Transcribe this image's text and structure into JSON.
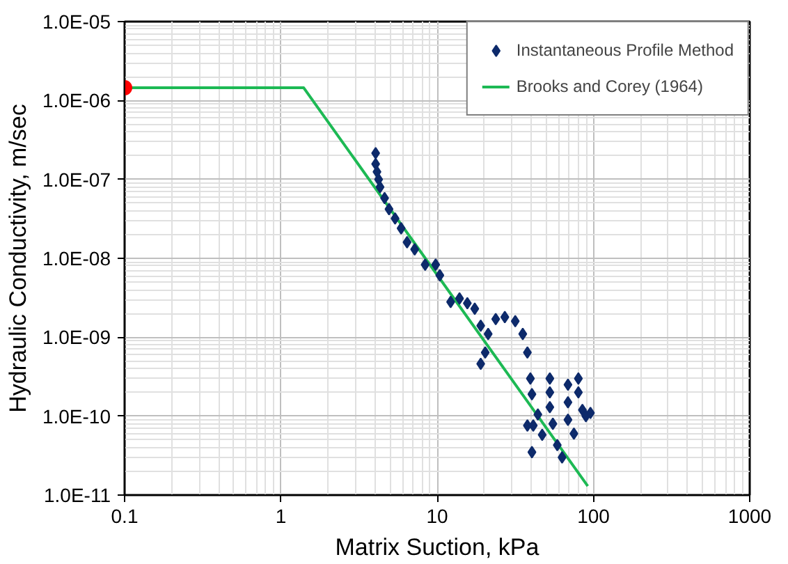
{
  "chart_data": {
    "type": "scatter",
    "xlabel": "Matrix Suction, kPa",
    "ylabel": "Hydraulic Conductivity, m/sec",
    "log": "xy",
    "grid": true,
    "legend": "top right",
    "xlim": [
      0.1,
      1000
    ],
    "xticks": [
      0.1,
      1,
      10,
      100,
      1000
    ],
    "ylim": [
      1e-11,
      1e-05
    ],
    "yticks": [
      {
        "value": 1e-11,
        "label": "1.0E-11"
      },
      {
        "value": 1e-10,
        "label": "1.0E-10"
      },
      {
        "value": 1e-09,
        "label": "1.0E-09"
      },
      {
        "value": 1e-08,
        "label": "1.0E-08"
      },
      {
        "value": 1e-07,
        "label": "1.0E-07"
      },
      {
        "value": 1e-06,
        "label": "1.0E-06"
      },
      {
        "value": 1e-05,
        "label": "1.0E-05"
      }
    ],
    "series": [
      {
        "name": "Instantaneous Profile Method",
        "marker": "diamond",
        "color": "#0d2a6b",
        "x": [
          4.04,
          4.04,
          4.12,
          4.22,
          4.31,
          4.61,
          4.92,
          5.38,
          5.88,
          6.42,
          7.18,
          8.38,
          9.78,
          10.4,
          12.2,
          13.9,
          15.6,
          17.4,
          19.0,
          19.0,
          20.3,
          21.2,
          23.7,
          27.1,
          31.6,
          35.3,
          37.8,
          39.5,
          40.4,
          37.8,
          41.2,
          40.4,
          44.1,
          47,
          52.6,
          52.6,
          52.6,
          55,
          58.7,
          63,
          68.7,
          68.7,
          68.7,
          75,
          80.1,
          80.1,
          85,
          89.5,
          95.7
        ],
        "values": [
          2.15e-07,
          1.57e-07,
          1.25e-07,
          1e-07,
          8e-08,
          5.8e-08,
          4.2e-08,
          3.2e-08,
          2.4e-08,
          1.6e-08,
          1.3e-08,
          8.3e-09,
          8.3e-09,
          6.1e-09,
          2.8e-09,
          3.1e-09,
          2.7e-09,
          2.3e-09,
          1.4e-09,
          4.6e-10,
          6.4e-10,
          1.1e-09,
          1.7e-09,
          1.8e-09,
          1.6e-09,
          1.1e-09,
          6.4e-10,
          3e-10,
          1.9e-10,
          7.6e-11,
          7.6e-11,
          3.5e-11,
          1.05e-10,
          5.8e-11,
          3e-10,
          2e-10,
          1.3e-10,
          8e-11,
          4.3e-11,
          3e-11,
          2.5e-10,
          1.5e-10,
          9e-11,
          6e-11,
          3e-10,
          2e-10,
          1.2e-10,
          1e-10,
          1.1e-10
        ]
      },
      {
        "name": "Brooks and Corey (1964)",
        "type": "line",
        "color": "#1db954",
        "x": [
          0.1,
          1.4,
          92
        ],
        "values": [
          1.45e-06,
          1.45e-06,
          1.3e-11
        ]
      },
      {
        "type": "scatter",
        "marker": "circle",
        "color": "#ff0000",
        "x": [
          0.1
        ],
        "values": [
          1.45e-06
        ]
      }
    ]
  }
}
